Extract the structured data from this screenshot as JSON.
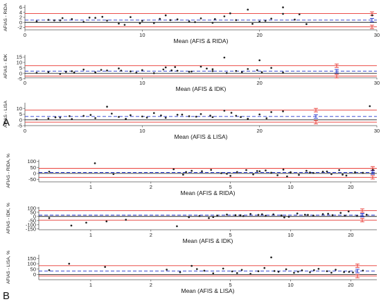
{
  "panel_labels": {
    "A": "A",
    "B": "B"
  },
  "colors": {
    "loa": "#e8342f",
    "bias": "#2233cc",
    "zero": "#000000",
    "point": "#222222",
    "axis": "#555555"
  },
  "chart_data": [
    {
      "id": "a1",
      "type": "scatter",
      "xscale": "linear",
      "xlim": [
        0,
        30
      ],
      "xticks": [
        0,
        10,
        20,
        30
      ],
      "xlabel": "Mean (AFIS & RIDA)",
      "ylabel": "AFIAS - RIDA",
      "ylim": [
        -3,
        7
      ],
      "yticks": [
        -2,
        0,
        2,
        4,
        6
      ],
      "bias": 0.9,
      "upper_loa": 3.5,
      "lower_loa": -1.8,
      "grid": false,
      "x": [
        1,
        2,
        3,
        4,
        5,
        6,
        7,
        8,
        9,
        10,
        11,
        12,
        13,
        14,
        15,
        16,
        17,
        18,
        19,
        20,
        21,
        22,
        23,
        24,
        2.5,
        5.5,
        8.5,
        11.5,
        14.5,
        17.5,
        20.5,
        3.2,
        6.6,
        9.8,
        12.4,
        16.2,
        19.4,
        22,
        23.4,
        29.6
      ],
      "y": [
        0.4,
        1.0,
        0.8,
        1.3,
        0.2,
        1.8,
        0.7,
        -0.5,
        2.1,
        0.6,
        -0.3,
        2.8,
        1.2,
        0.4,
        1.6,
        -0.2,
        2.4,
        0.9,
        5.1,
        0.3,
        1.5,
        3.4,
        1.1,
        -0.7,
        0.8,
        1.9,
        -1.0,
        1.4,
        0.1,
        3.6,
        0.6,
        1.7,
        2.2,
        -0.4,
        0.9,
        1.3,
        -0.6,
        6.0,
        3.2,
        2.8
      ]
    },
    {
      "id": "a2",
      "type": "scatter",
      "xscale": "linear",
      "xlim": [
        0,
        30
      ],
      "xticks": [
        0,
        10,
        20,
        30
      ],
      "xlabel": "Mean (AFIS & IDK)",
      "ylabel": "AFIAS - IDK",
      "ylim": [
        -4,
        17
      ],
      "yticks": [
        -5,
        0,
        5,
        10,
        15
      ],
      "bias": 2.0,
      "upper_loa": 7.0,
      "lower_loa": -2.5,
      "grid": false,
      "x": [
        1,
        2,
        3,
        4,
        5,
        6,
        7,
        8,
        9,
        10,
        11,
        12,
        13,
        14,
        15,
        16,
        17,
        18,
        19,
        20,
        21,
        22,
        3.5,
        6.5,
        9.5,
        12.5,
        15.5,
        18.5,
        4.2,
        8.2,
        11.8,
        14.2,
        16,
        17.2,
        19.8,
        20.2,
        12.8
      ],
      "y": [
        0.5,
        1.2,
        -0.5,
        2.0,
        3.5,
        1.0,
        2.6,
        4.5,
        1.8,
        3.0,
        0.2,
        5.5,
        2.4,
        1.5,
        6.2,
        3.8,
        14.5,
        2.2,
        4.0,
        12.0,
        5.0,
        0.8,
        1.4,
        3.2,
        0.6,
        2.8,
        4.4,
        1.2,
        0.9,
        2.5,
        3.6,
        1.7,
        2.1,
        0.4,
        2.9,
        1.1,
        5.8
      ]
    },
    {
      "id": "a3",
      "type": "scatter",
      "xscale": "linear",
      "xlim": [
        0,
        30
      ],
      "xticks": [
        0,
        10,
        20,
        30
      ],
      "xlabel": "Mean (AFIS & LISA)",
      "ylabel": "AFIAS - LISA",
      "ylim": [
        -5,
        15
      ],
      "yticks": [
        -5,
        0,
        5,
        10
      ],
      "bias": 3.0,
      "upper_loa": 8.5,
      "lower_loa": -2.0,
      "grid": false,
      "x": [
        1,
        2,
        3,
        4,
        5,
        6,
        7,
        8,
        9,
        10,
        11,
        12,
        13,
        14,
        15,
        16,
        17,
        18,
        19,
        20,
        21,
        22,
        2.6,
        5.6,
        8.6,
        11.6,
        14.6,
        17.6,
        20.6,
        3.8,
        7.4,
        10.4,
        13.4,
        15.8,
        18.4,
        29.4
      ],
      "y": [
        0.5,
        1.2,
        2.0,
        0.8,
        3.5,
        1.5,
        11.5,
        2.6,
        4.1,
        3.0,
        6.0,
        1.8,
        4.5,
        3.2,
        5.1,
        2.4,
        8.0,
        3.6,
        1.0,
        4.8,
        6.8,
        7.5,
        2.2,
        4.3,
        0.9,
        3.9,
        2.8,
        6.2,
        1.4,
        3.3,
        5.5,
        2.0,
        4.6,
        3.7,
        2.5,
        12.0
      ]
    },
    {
      "id": "b1",
      "type": "scatter",
      "xscale": "log",
      "xlim": [
        0.55,
        27
      ],
      "xticks": [
        1,
        2,
        5,
        10,
        20
      ],
      "xlabel": "Mean (AFIS & RIDA)",
      "ylabel": "AFIAS - RIDA, %",
      "ylim": [
        -70,
        115
      ],
      "yticks": [
        -50,
        0,
        50,
        100
      ],
      "bias": 8,
      "upper_loa": 42,
      "lower_loa": -32,
      "grid": false,
      "x": [
        0.62,
        1.05,
        1.3,
        2.6,
        2.9,
        3.2,
        3.6,
        4.0,
        4.5,
        5.0,
        5.4,
        6.0,
        6.5,
        7.0,
        7.5,
        8.0,
        8.6,
        9.2,
        10.0,
        11.0,
        12.0,
        13.0,
        14.5,
        16.0,
        17.5,
        19.0,
        21.0,
        23.0,
        3.0,
        4.8,
        6.8,
        9.6,
        12.5,
        15.2,
        18.2,
        25.8
      ],
      "y": [
        15,
        85,
        -5,
        35,
        -10,
        22,
        18,
        30,
        2,
        -20,
        12,
        28,
        -8,
        18,
        25,
        6,
        -15,
        32,
        10,
        -12,
        22,
        4,
        15,
        -6,
        28,
        -18,
        10,
        5,
        12,
        -3,
        20,
        -25,
        8,
        16,
        -10,
        30
      ]
    },
    {
      "id": "b2",
      "type": "scatter",
      "xscale": "log",
      "xlim": [
        0.55,
        27
      ],
      "xticks": [
        1,
        2,
        5,
        10,
        20
      ],
      "xlabel": "Mean (AFIS & IDK)",
      "ylabel": "AFIAS - IDK, %",
      "ylim": [
        -160,
        115
      ],
      "yticks": [
        -150,
        -100,
        -50,
        0,
        50,
        100
      ],
      "bias": 15,
      "upper_loa": 70,
      "lower_loa": -45,
      "grid": false,
      "x": [
        0.62,
        0.8,
        0.95,
        1.2,
        1.5,
        2.7,
        3.1,
        3.5,
        3.9,
        4.3,
        4.8,
        5.3,
        5.8,
        6.3,
        6.9,
        7.5,
        8.2,
        9.0,
        9.8,
        10.8,
        11.8,
        13.0,
        14.5,
        16.2,
        17.8,
        19.5,
        21.5,
        24.0,
        4.1,
        5.6,
        7.2,
        9.3,
        12.2,
        15.4,
        18.7
      ],
      "y": [
        -20,
        -110,
        -75,
        -60,
        -40,
        -118,
        -10,
        5,
        -20,
        10,
        22,
        15,
        4,
        30,
        18,
        8,
        25,
        12,
        -5,
        35,
        20,
        10,
        28,
        15,
        42,
        60,
        6,
        20,
        -8,
        14,
        26,
        -12,
        18,
        32,
        9
      ]
    },
    {
      "id": "b3",
      "type": "scatter",
      "xscale": "log",
      "xlim": [
        0.55,
        27
      ],
      "xticks": [
        1,
        2,
        5,
        10,
        20
      ],
      "xlabel": "Mean (AFIS & LISA)",
      "ylabel": "AFIAS - LISA, %",
      "ylim": [
        -50,
        185
      ],
      "yticks": [
        0,
        50,
        100,
        150
      ],
      "bias": 32,
      "upper_loa": 82,
      "lower_loa": -15,
      "grid": false,
      "x": [
        0.62,
        0.78,
        1.18,
        2.4,
        2.8,
        3.2,
        3.7,
        4.1,
        4.6,
        5.1,
        5.7,
        6.3,
        6.9,
        7.4,
        8.0,
        8.7,
        9.5,
        10.4,
        11.4,
        12.5,
        13.8,
        15.2,
        16.8,
        18.5,
        20.5,
        23.0,
        3.4,
        5.4,
        8.3,
        10.9,
        13.1,
        16.0,
        19.6
      ],
      "y": [
        40,
        100,
        70,
        45,
        20,
        80,
        35,
        10,
        55,
        28,
        42,
        5,
        30,
        60,
        160,
        25,
        48,
        15,
        38,
        20,
        52,
        30,
        44,
        22,
        18,
        36,
        50,
        12,
        32,
        26,
        40,
        16,
        24
      ]
    }
  ]
}
